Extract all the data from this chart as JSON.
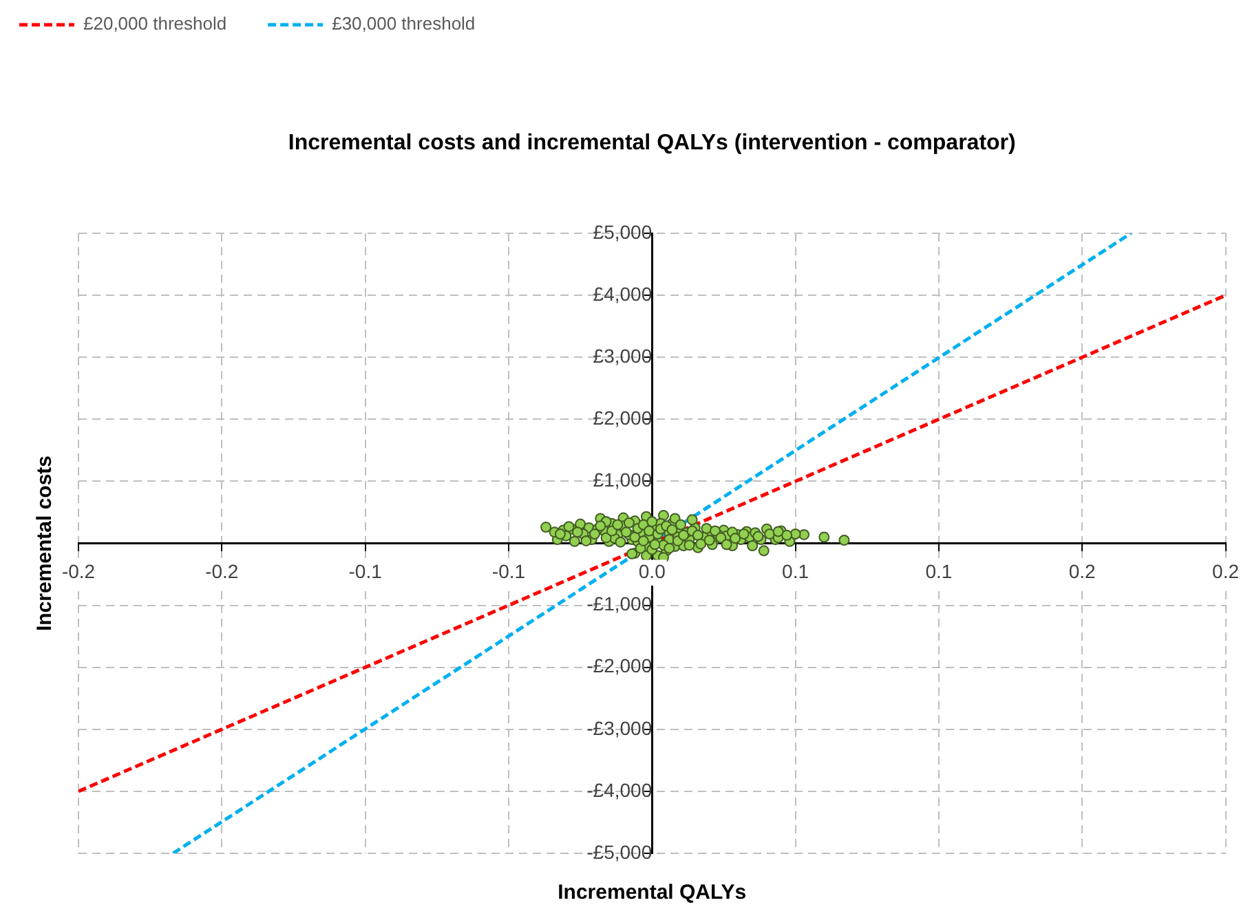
{
  "chart_data": {
    "type": "scatter",
    "title": "Incremental costs and incremental QALYs (intervention - comparator)",
    "xlabel": "Incremental QALYs",
    "ylabel": "Incremental costs",
    "xlim": [
      -0.2,
      0.2
    ],
    "xticks": [
      -0.2,
      {
        "value": -0.15,
        "label": "-0.2"
      },
      -0.1,
      {
        "value": -0.05,
        "label": "-0.1"
      },
      {
        "value": 0,
        "label": "0.0"
      },
      {
        "value": 0.05,
        "label": "0.1"
      },
      0.1,
      {
        "value": 0.15,
        "label": "0.2"
      },
      0.2
    ],
    "ylim": [
      -5000,
      5000
    ],
    "yticks": [
      {
        "value": -5000,
        "label": "-£5,000"
      },
      {
        "value": -4000,
        "label": "-£4,000"
      },
      {
        "value": -3000,
        "label": "-£3,000"
      },
      {
        "value": -2000,
        "label": "-£2,000"
      },
      {
        "value": -1000,
        "label": "-£1,000"
      },
      {
        "value": 0,
        "label": null
      },
      {
        "value": 1000,
        "label": "£1,000"
      },
      {
        "value": 2000,
        "label": "£2,000"
      },
      {
        "value": 3000,
        "label": "£3,000"
      },
      {
        "value": 4000,
        "label": "£4,000"
      },
      {
        "value": 5000,
        "label": "£5,000"
      }
    ],
    "grid": true,
    "legend": "top left",
    "series": [
      {
        "name": "£20,000 threshold",
        "type": "line",
        "color": "#ff0000",
        "line_style": "dashed",
        "marker": "none",
        "x": [
          -0.2,
          0.2
        ],
        "values": [
          -4000,
          4000
        ]
      },
      {
        "name": "£30,000 threshold",
        "type": "line",
        "color": "#00b0f0",
        "line_style": "dashed",
        "marker": "none",
        "x": [
          -0.167,
          0.167
        ],
        "values": [
          -5000,
          5000
        ]
      },
      {
        "type": "scatter",
        "color": "#92d050",
        "marker": "circle",
        "x": [
          -0.037,
          -0.031,
          -0.033,
          -0.028,
          -0.027,
          -0.025,
          -0.022,
          -0.021,
          -0.018,
          -0.017,
          -0.015,
          -0.014,
          -0.012,
          -0.01,
          -0.007,
          -0.006,
          -0.004,
          -0.002,
          -0.002,
          0.001,
          0.002,
          0.004,
          0.005,
          0.006,
          0.007,
          0.008,
          0.002,
          -0.002,
          -0.006,
          0.01,
          0.013,
          0.015,
          0.02,
          0.022,
          0.025,
          0.03,
          0.033,
          0.038,
          0.039,
          0.04,
          0.045,
          0.053,
          0.06,
          0.067,
          -0.01,
          -0.008,
          -0.005,
          -0.001,
          0.003,
          0.006,
          0.009,
          0.012,
          0.018,
          0.023,
          0.031,
          0.034,
          0.036,
          -0.019,
          -0.03,
          0,
          0.004,
          -0.004,
          0.011,
          0.016,
          0.021,
          0.028,
          -0.013,
          -0.024,
          0.014,
          -0.016,
          0.008,
          0.026,
          0.043,
          0.048,
          0.05,
          -0.034,
          -0.02,
          -0.018,
          -0.016,
          -0.014,
          -0.012,
          -0.011,
          -0.009,
          -0.008,
          -0.006,
          -0.005,
          -0.003,
          -0.003,
          -0.001,
          0,
          0.001,
          0.002,
          0.003,
          0.005,
          0.006,
          0.007,
          0.009,
          0.01,
          0.011,
          0.013,
          0.014,
          0.016,
          0.017,
          0.019,
          0.02,
          0.022,
          0.024,
          0.026,
          0.028,
          0.029,
          0.032,
          0.035,
          0.037,
          0.041,
          0.044,
          0.047,
          -0.023,
          -0.026,
          -0.029,
          -0.032,
          -0.007,
          0.004,
          0.044
        ],
        "values": [
          260,
          210,
          60,
          230,
          30,
          310,
          250,
          60,
          400,
          210,
          30,
          320,
          140,
          410,
          60,
          360,
          170,
          -50,
          430,
          250,
          30,
          450,
          -120,
          170,
          320,
          -50,
          -200,
          -200,
          -160,
          210,
          60,
          250,
          170,
          60,
          210,
          140,
          190,
          60,
          -120,
          230,
          200,
          140,
          100,
          50,
          280,
          140,
          30,
          100,
          320,
          60,
          100,
          170,
          100,
          140,
          60,
          100,
          170,
          230,
          120,
          -100,
          -30,
          -80,
          -40,
          -70,
          -20,
          -40,
          80,
          150,
          380,
          350,
          400,
          120,
          60,
          30,
          150,
          180,
          150,
          280,
          90,
          200,
          300,
          20,
          180,
          330,
          100,
          240,
          300,
          40,
          200,
          350,
          -20,
          150,
          230,
          280,
          -80,
          220,
          40,
          300,
          130,
          -30,
          200,
          130,
          -10,
          240,
          50,
          200,
          90,
          -20,
          180,
          80,
          150,
          -40,
          110,
          150,
          90,
          130,
          40,
          180,
          270,
          150,
          -170,
          -230,
          190
        ]
      }
    ]
  }
}
